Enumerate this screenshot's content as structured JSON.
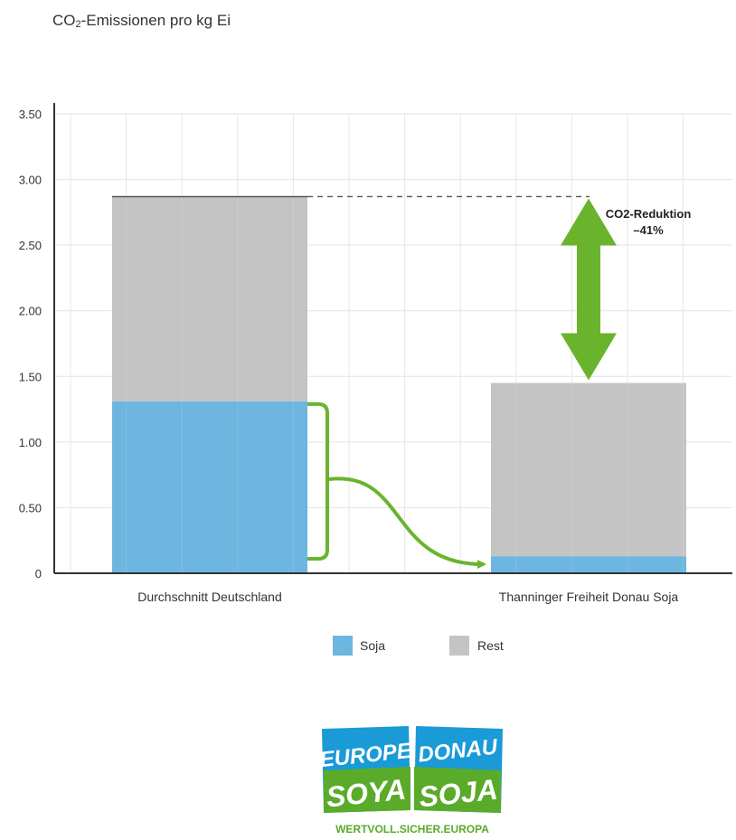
{
  "title_main": "CO",
  "title_sub": "2",
  "title_rest": "-Emissionen pro kg Ei",
  "colors": {
    "soja": "#6cb6e0",
    "rest": "#c4c4c4",
    "arrow": "#6ab42d",
    "grid": "#e3e3e3",
    "axis": "#333333"
  },
  "chart_data": {
    "type": "bar",
    "stacked": true,
    "categories": [
      "Durchschnitt Deutschland",
      "Thanninger Freiheit Donau Soja"
    ],
    "series": [
      {
        "name": "Soja",
        "values": [
          1.31,
          0.13
        ]
      },
      {
        "name": "Rest",
        "values": [
          1.56,
          1.32
        ]
      }
    ],
    "totals": [
      2.87,
      1.45
    ],
    "ylim": [
      0,
      3.5
    ],
    "yticks": [
      0,
      0.5,
      1.0,
      1.5,
      2.0,
      2.5,
      3.0,
      3.5
    ],
    "ytick_labels": [
      "0",
      "0.50",
      "1.00",
      "1.50",
      "2.00",
      "2.50",
      "3.00",
      "3.50"
    ],
    "grid": true,
    "legend_position": "bottom-center",
    "annotation": {
      "line1": "CO2-Reduktion",
      "line2": "–41%"
    }
  },
  "logo": {
    "left_line1": "EUROPE",
    "left_line2": "SOYA",
    "right_line1": "DONAU",
    "right_line2": "SOJA",
    "tagline": "WERTVOLL.SICHER.EUROPA"
  }
}
